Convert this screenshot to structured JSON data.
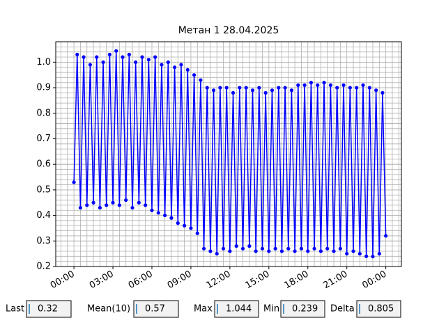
{
  "chart_data": {
    "type": "line",
    "title": "Метан 1 28.04.2025",
    "x": [
      0,
      0.25,
      0.5,
      0.75,
      1,
      1.25,
      1.5,
      1.75,
      2,
      2.25,
      2.5,
      2.75,
      3,
      3.25,
      3.5,
      3.75,
      4,
      4.25,
      4.5,
      4.75,
      5,
      5.25,
      5.5,
      5.75,
      6,
      6.25,
      6.5,
      6.75,
      7,
      7.25,
      7.5,
      7.75,
      8,
      8.25,
      8.5,
      8.75,
      9,
      9.25,
      9.5,
      9.75,
      10,
      10.25,
      10.5,
      10.75,
      11,
      11.25,
      11.5,
      11.75,
      12,
      12.25,
      12.5,
      12.75,
      13,
      13.25,
      13.5,
      13.75,
      14,
      14.25,
      14.5,
      14.75,
      15,
      15.25,
      15.5,
      15.75,
      16,
      16.25,
      16.5,
      16.75,
      17,
      17.25,
      17.5,
      17.75,
      18,
      18.25,
      18.5,
      18.75,
      19,
      19.25,
      19.5,
      19.75,
      20,
      20.25,
      20.5,
      20.75,
      21,
      21.25,
      21.5,
      21.75,
      22,
      22.25,
      22.5,
      22.75,
      23,
      23.25,
      23.5,
      23.75,
      24
    ],
    "series": [
      {
        "name": "Метан 1",
        "color": "#0000ff",
        "values": [
          0.53,
          1.03,
          0.43,
          1.02,
          0.44,
          0.99,
          0.45,
          1.02,
          0.43,
          1.0,
          0.44,
          1.03,
          0.45,
          1.044,
          0.44,
          1.02,
          0.46,
          1.03,
          0.43,
          1.0,
          0.45,
          1.02,
          0.44,
          1.01,
          0.42,
          1.02,
          0.41,
          0.99,
          0.4,
          1.0,
          0.39,
          0.98,
          0.37,
          0.99,
          0.36,
          0.97,
          0.35,
          0.95,
          0.33,
          0.93,
          0.27,
          0.9,
          0.26,
          0.89,
          0.25,
          0.9,
          0.27,
          0.9,
          0.26,
          0.88,
          0.28,
          0.9,
          0.27,
          0.9,
          0.28,
          0.89,
          0.26,
          0.9,
          0.27,
          0.88,
          0.26,
          0.89,
          0.27,
          0.9,
          0.26,
          0.9,
          0.27,
          0.89,
          0.26,
          0.91,
          0.27,
          0.91,
          0.26,
          0.92,
          0.27,
          0.91,
          0.26,
          0.92,
          0.27,
          0.91,
          0.26,
          0.9,
          0.27,
          0.91,
          0.25,
          0.9,
          0.26,
          0.9,
          0.25,
          0.91,
          0.24,
          0.9,
          0.239,
          0.89,
          0.25,
          0.88,
          0.32
        ]
      }
    ],
    "xlim": [
      -1.4,
      25.2
    ],
    "xticks": [
      {
        "value": 0,
        "label": "00:00"
      },
      {
        "value": 3,
        "label": "03:00"
      },
      {
        "value": 6,
        "label": "06:00"
      },
      {
        "value": 9,
        "label": "09:00"
      },
      {
        "value": 12,
        "label": "12:00"
      },
      {
        "value": 15,
        "label": "15:00"
      },
      {
        "value": 18,
        "label": "18:00"
      },
      {
        "value": 21,
        "label": "21:00"
      },
      {
        "value": 24,
        "label": "00:00"
      }
    ],
    "ylim": [
      0.2,
      1.08
    ],
    "yticks": [
      0.2,
      0.3,
      0.4,
      0.5,
      0.6,
      0.7,
      0.8,
      0.9,
      {
        "value": 1,
        "label": "1.0"
      }
    ],
    "grid": true,
    "minor_grid": {
      "x": 0.5,
      "y": 0.02
    }
  },
  "stats": [
    {
      "label": "Last",
      "value": "0.32"
    },
    {
      "label": "Mean(10)",
      "value": "0.57"
    },
    {
      "label": "Max",
      "value": "1.044"
    },
    {
      "label": "Min",
      "value": "0.239"
    },
    {
      "label": "Delta",
      "value": "0.805"
    }
  ]
}
